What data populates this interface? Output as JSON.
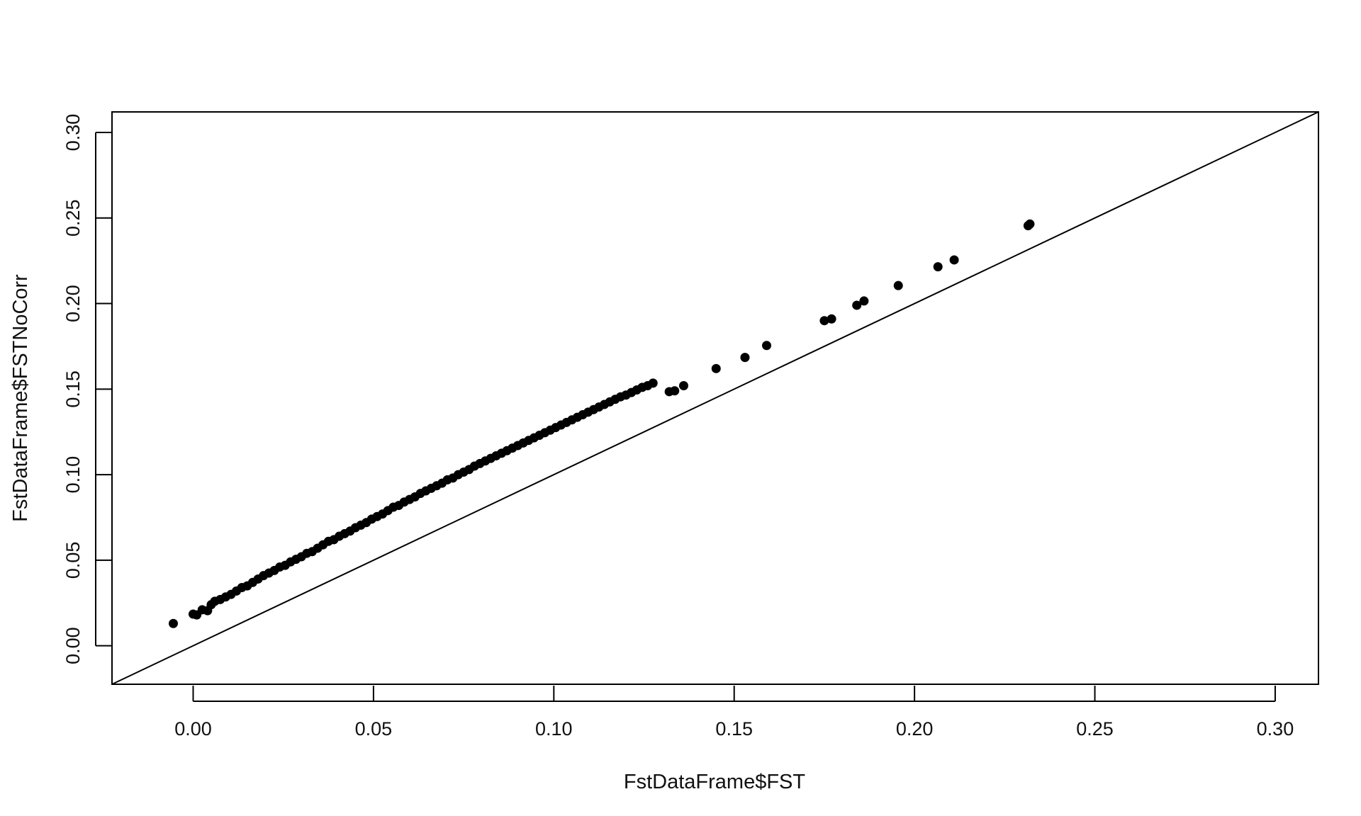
{
  "chart_data": {
    "type": "scatter",
    "title": "",
    "xlabel": "FstDataFrame$FST",
    "ylabel": "FstDataFrame$FSTNoCorr",
    "xlim": [
      -0.0225,
      0.312
    ],
    "ylim": [
      -0.0225,
      0.312
    ],
    "xticks": [
      "0.00",
      "0.05",
      "0.10",
      "0.15",
      "0.20",
      "0.25",
      "0.30"
    ],
    "yticks": [
      "0.00",
      "0.05",
      "0.10",
      "0.15",
      "0.20",
      "0.25",
      "0.30"
    ],
    "grid": false,
    "box": true,
    "reference_line": {
      "type": "abline",
      "intercept": 0,
      "slope": 1
    },
    "marker_color": "#000000",
    "series": [
      {
        "x": [
          -0.0055,
          0.0,
          0.001,
          0.0025,
          0.004,
          0.005,
          0.006,
          0.0075,
          0.009,
          0.0105,
          0.012,
          0.0135,
          0.015,
          0.0165,
          0.018,
          0.0195,
          0.021,
          0.0225,
          0.024,
          0.0255,
          0.027,
          0.0285,
          0.03,
          0.0315,
          0.033,
          0.0345,
          0.036,
          0.0375,
          0.039,
          0.0405,
          0.042,
          0.0435,
          0.045,
          0.0465,
          0.048,
          0.0495,
          0.051,
          0.0525,
          0.054,
          0.0555,
          0.057,
          0.0585,
          0.06,
          0.0615,
          0.063,
          0.0645,
          0.066,
          0.0675,
          0.069,
          0.0705,
          0.072,
          0.0735,
          0.075,
          0.0765,
          0.078,
          0.0795,
          0.081,
          0.0825,
          0.084,
          0.0855,
          0.087,
          0.0885,
          0.09,
          0.0915,
          0.093,
          0.0945,
          0.096,
          0.0975,
          0.099,
          0.1005,
          0.102,
          0.1035,
          0.105,
          0.1065,
          0.108,
          0.1095,
          0.111,
          0.1125,
          0.114,
          0.1155,
          0.117,
          0.1185,
          0.12,
          0.1215,
          0.123,
          0.1245,
          0.126,
          0.1275,
          0.132,
          0.1335,
          0.136,
          0.145,
          0.153,
          0.159,
          0.175,
          0.177,
          0.184,
          0.186,
          0.1955,
          0.2065,
          0.211,
          0.2315,
          0.232
        ],
        "y": [
          0.013,
          0.0185,
          0.018,
          0.021,
          0.0205,
          0.024,
          0.026,
          0.027,
          0.0285,
          0.03,
          0.032,
          0.034,
          0.035,
          0.037,
          0.039,
          0.041,
          0.0425,
          0.044,
          0.046,
          0.047,
          0.049,
          0.0505,
          0.052,
          0.054,
          0.055,
          0.057,
          0.059,
          0.061,
          0.062,
          0.064,
          0.0655,
          0.067,
          0.069,
          0.0705,
          0.072,
          0.074,
          0.0755,
          0.077,
          0.079,
          0.081,
          0.082,
          0.084,
          0.0855,
          0.087,
          0.089,
          0.0905,
          0.092,
          0.0935,
          0.095,
          0.097,
          0.098,
          0.1,
          0.1015,
          0.103,
          0.105,
          0.1065,
          0.108,
          0.1095,
          0.111,
          0.1125,
          0.114,
          0.1155,
          0.117,
          0.1185,
          0.12,
          0.1215,
          0.123,
          0.1245,
          0.126,
          0.1275,
          0.129,
          0.1305,
          0.132,
          0.1335,
          0.135,
          0.1365,
          0.138,
          0.1395,
          0.141,
          0.1425,
          0.144,
          0.1455,
          0.1465,
          0.148,
          0.1495,
          0.151,
          0.152,
          0.1535,
          0.1485,
          0.149,
          0.152,
          0.162,
          0.1685,
          0.1755,
          0.19,
          0.191,
          0.199,
          0.2015,
          0.2105,
          0.2215,
          0.2255,
          0.2455,
          0.2465
        ]
      }
    ]
  }
}
